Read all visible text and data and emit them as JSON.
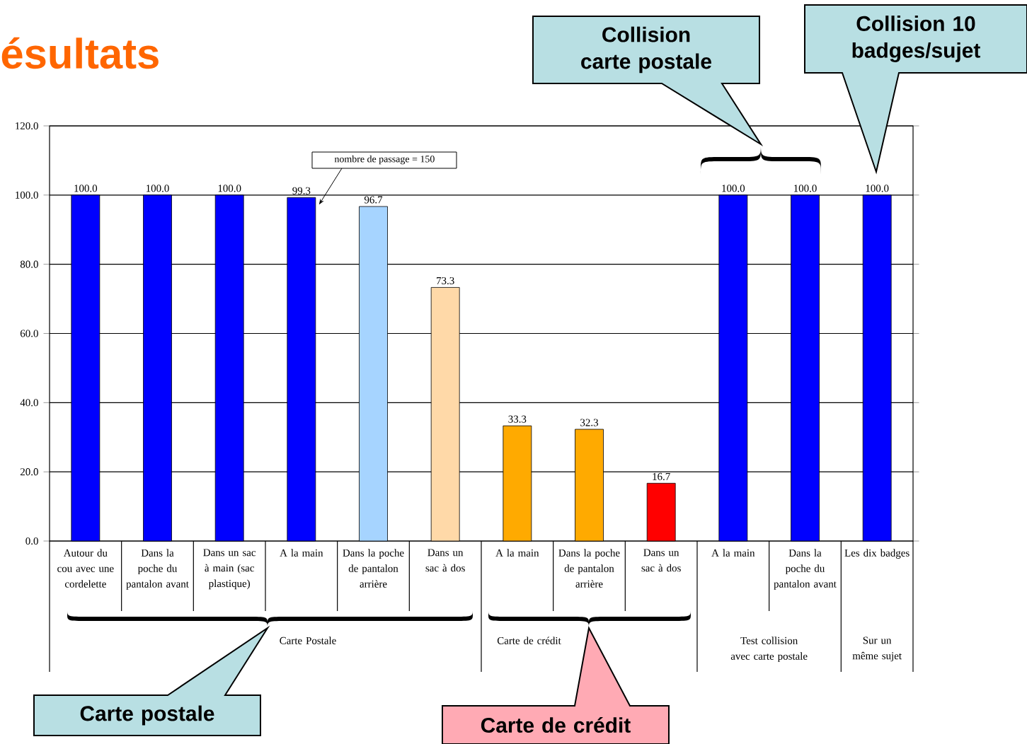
{
  "chart_data": {
    "type": "bar",
    "title": "ésultats",
    "categories": [
      "Autour du cou avec une cordelette",
      "Dans la poche du pantalon avant",
      "Dans un sac à main (sac plastique)",
      "A la main",
      "Dans la poche de pantalon arrière",
      "Dans un sac à dos",
      "A la main",
      "Dans la poche de pantalon arrière",
      "Dans un sac à dos",
      "A la main",
      "Dans la poche du pantalon avant",
      "Les dix badges"
    ],
    "values": [
      100,
      100,
      100,
      99.3,
      96.7,
      73.3,
      33.3,
      32.3,
      16.7,
      100,
      100,
      100
    ],
    "value_labels": [
      "100.0",
      "100.0",
      "100.0",
      "99.3",
      "96.7",
      "73.3",
      "33.3",
      "32.3",
      "16.7",
      "100.0",
      "100.0",
      "100.0"
    ],
    "colors": [
      "#0000ff",
      "#0000ff",
      "#0000ff",
      "#0000ff",
      "#a6d4ff",
      "#ffd9a8",
      "#ffaa00",
      "#ffaa00",
      "#ff0000",
      "#0000ff",
      "#0000ff",
      "#0000ff"
    ],
    "ylim": [
      0,
      120
    ],
    "yticks": [
      {
        "value": 0,
        "label": "0.0"
      },
      {
        "value": 20,
        "label": "20.0"
      },
      {
        "value": 40,
        "label": "40.0"
      },
      {
        "value": 60,
        "label": "60.0"
      },
      {
        "value": 80,
        "label": "80.0"
      },
      {
        "value": 100,
        "label": "100.0"
      },
      {
        "value": 120,
        "label": "120.0"
      }
    ],
    "grid": "y",
    "annotations": [
      "nombre de passage = 150",
      "Carte Postale",
      "Carte de crédit",
      "Test collision avec carte postale",
      "Sur un même sujet",
      "Collision carte postale",
      "Collision 10 badges/sujet",
      "Carte postale",
      "Carte de crédit"
    ]
  }
}
